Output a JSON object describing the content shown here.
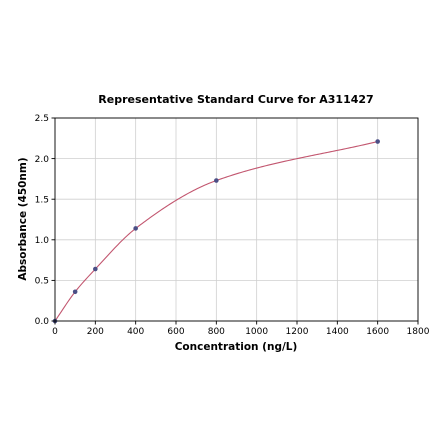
{
  "chart_data": {
    "type": "scatter",
    "title": "Representative Standard Curve for A311427",
    "xlabel": "Concentration (ng/L)",
    "ylabel": "Absorbance (450nm)",
    "xlim": [
      0,
      1800
    ],
    "ylim": [
      0,
      2.5
    ],
    "xticks": [
      0,
      200,
      400,
      600,
      800,
      1000,
      1200,
      1400,
      1600,
      1800
    ],
    "yticks": [
      0.0,
      0.5,
      1.0,
      1.5,
      2.0,
      2.5
    ],
    "xtick_labels": [
      "0",
      "200",
      "400",
      "600",
      "800",
      "1000",
      "1200",
      "1400",
      "1600",
      "1800"
    ],
    "ytick_labels": [
      "0.0",
      "0.5",
      "1.0",
      "1.5",
      "2.0",
      "2.5"
    ],
    "grid": true,
    "series": [
      {
        "points": [
          {
            "x": 0,
            "y": 0.0
          },
          {
            "x": 100,
            "y": 0.36
          },
          {
            "x": 200,
            "y": 0.64
          },
          {
            "x": 400,
            "y": 1.14
          },
          {
            "x": 800,
            "y": 1.73
          },
          {
            "x": 1600,
            "y": 2.21
          }
        ],
        "fit_curve": true
      }
    ],
    "point_color": "#4b4f86",
    "curve_color": "#c2566f"
  }
}
